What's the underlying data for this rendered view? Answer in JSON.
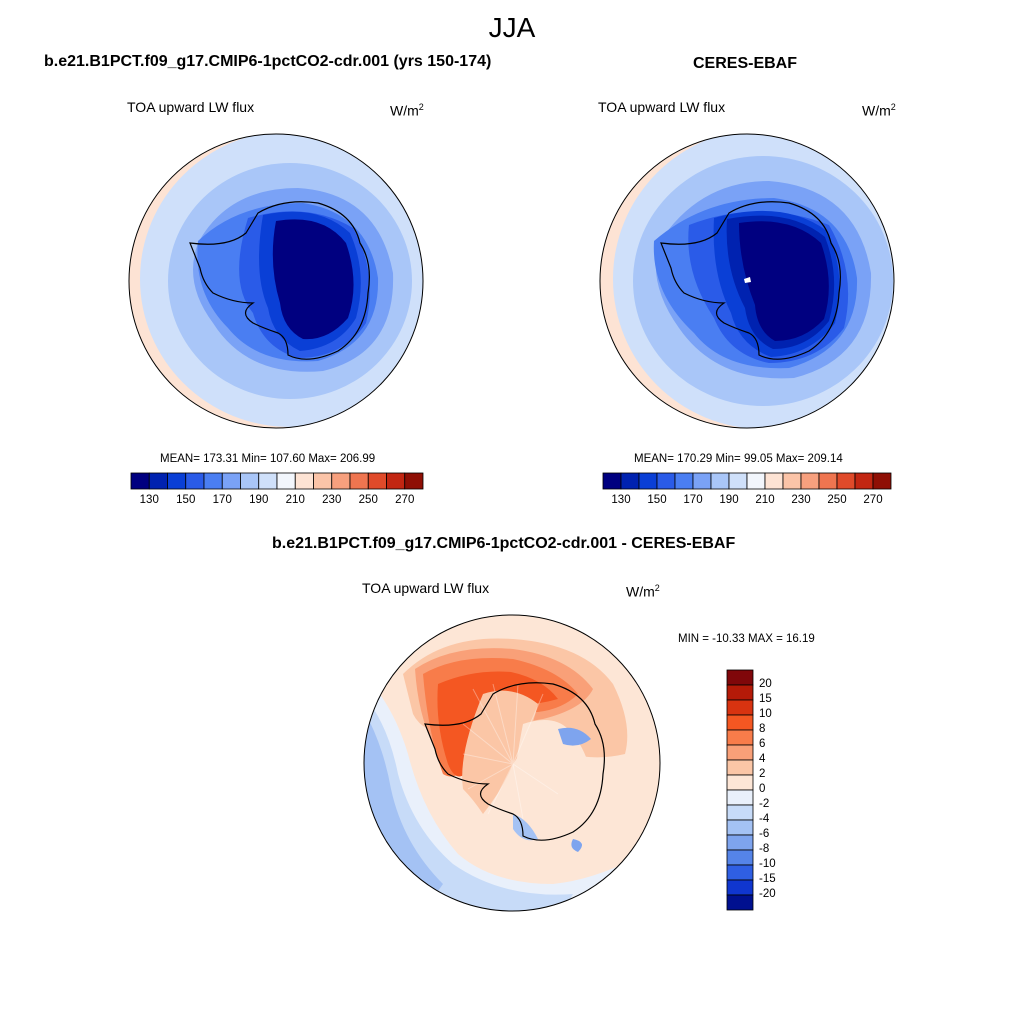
{
  "figure": {
    "season": "JJA"
  },
  "panels": [
    {
      "title": "b.e21.B1PCT.f09_g17.CMIP6-1pctCO2-cdr.001 (yrs 150-174)",
      "variable": "TOA upward LW flux",
      "unit": "W/m",
      "unit_exp": "2",
      "stats": "MEAN= 173.31  Min= 107.60  Max= 206.99"
    },
    {
      "title": "CERES-EBAF",
      "variable": "TOA upward LW flux",
      "unit": "W/m",
      "unit_exp": "2",
      "stats": "MEAN= 170.29  Min=  99.05  Max= 209.14"
    },
    {
      "title": "b.e21.B1PCT.f09_g17.CMIP6-1pctCO2-cdr.001 - CERES-EBAF",
      "variable": "TOA upward LW flux",
      "unit": "W/m",
      "unit_exp": "2",
      "stats": "MIN = -10.33 MAX =  16.19"
    }
  ],
  "chart_data": [
    {
      "type": "heatmap",
      "projection": "south-polar-stereographic",
      "title": "b.e21.B1PCT.f09_g17.CMIP6-1pctCO2-cdr.001 (yrs 150-174)",
      "field": "TOA upward LW flux",
      "units": "W/m^2",
      "mean": 173.31,
      "min": 107.6,
      "max": 206.99,
      "levels": [
        130,
        140,
        150,
        160,
        170,
        180,
        190,
        200,
        210,
        220,
        230,
        240,
        250,
        260,
        270
      ],
      "tick_labels": [
        "130",
        "150",
        "170",
        "190",
        "210",
        "230",
        "250",
        "270"
      ],
      "colors": [
        "#000080",
        "#0022b0",
        "#0a3fd6",
        "#2a5be8",
        "#4a7ef2",
        "#7aa2f6",
        "#a9c6f8",
        "#cfe0fa",
        "#f2f6fc",
        "#fde3d4",
        "#fbc4a8",
        "#f7a07e",
        "#ef7550",
        "#e04a2a",
        "#c22612",
        "#8f0f05"
      ]
    },
    {
      "type": "heatmap",
      "projection": "south-polar-stereographic",
      "title": "CERES-EBAF",
      "field": "TOA upward LW flux",
      "units": "W/m^2",
      "mean": 170.29,
      "min": 99.05,
      "max": 209.14,
      "levels": [
        130,
        140,
        150,
        160,
        170,
        180,
        190,
        200,
        210,
        220,
        230,
        240,
        250,
        260,
        270
      ],
      "tick_labels": [
        "130",
        "150",
        "170",
        "190",
        "210",
        "230",
        "250",
        "270"
      ],
      "colors": [
        "#000080",
        "#0022b0",
        "#0a3fd6",
        "#2a5be8",
        "#4a7ef2",
        "#7aa2f6",
        "#a9c6f8",
        "#cfe0fa",
        "#f2f6fc",
        "#fde3d4",
        "#fbc4a8",
        "#f7a07e",
        "#ef7550",
        "#e04a2a",
        "#c22612",
        "#8f0f05"
      ]
    },
    {
      "type": "heatmap",
      "projection": "south-polar-stereographic",
      "title": "b.e21.B1PCT.f09_g17.CMIP6-1pctCO2-cdr.001 - CERES-EBAF",
      "field": "TOA upward LW flux difference",
      "units": "W/m^2",
      "min": -10.33,
      "max": 16.19,
      "levels": [
        -20,
        -15,
        -10,
        -8,
        -6,
        -4,
        -2,
        0,
        2,
        4,
        6,
        8,
        10,
        15,
        20
      ],
      "tick_labels": [
        "20",
        "15",
        "10",
        "8",
        "6",
        "4",
        "2",
        "0",
        "-2",
        "-4",
        "-6",
        "-8",
        "-10",
        "-15",
        "-20"
      ],
      "colors": [
        "#80070a",
        "#b51a08",
        "#d83310",
        "#f45722",
        "#f87c4a",
        "#f9a078",
        "#fbc6a6",
        "#fde6d6",
        "#e9f0fb",
        "#c7dbf8",
        "#a4c2f4",
        "#7ea4ee",
        "#5584e8",
        "#2f5fe3",
        "#1036cf",
        "#00108f"
      ]
    }
  ]
}
